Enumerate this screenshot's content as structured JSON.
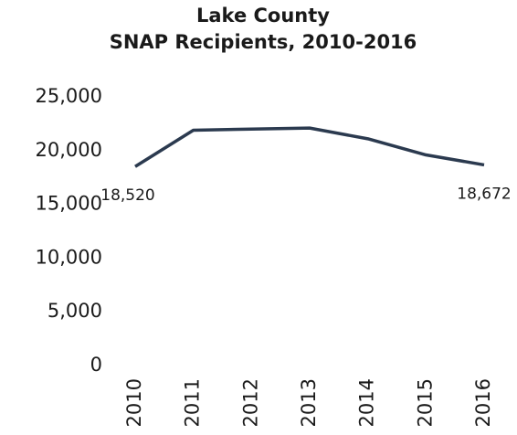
{
  "chart_data": {
    "type": "line",
    "title": "Lake County",
    "subtitle": "SNAP Recipients, 2010-2016",
    "categories": [
      "2010",
      "2011",
      "2012",
      "2013",
      "2014",
      "2015",
      "2016"
    ],
    "series": [
      {
        "name": "SNAP Recipients",
        "color": "#2b3a4f",
        "values": [
          18520,
          21900,
          22000,
          22100,
          21100,
          19600,
          18672
        ],
        "value_labels": [
          "18,520",
          null,
          null,
          null,
          null,
          null,
          "18,672"
        ]
      }
    ],
    "ylim": [
      0,
      25000
    ],
    "yticks": [
      0,
      {
        "value": 5000,
        "label": "5,000"
      },
      {
        "value": 10000,
        "label": "10,000"
      },
      {
        "value": 15000,
        "label": "15,000"
      },
      {
        "value": 20000,
        "label": "20,000"
      },
      {
        "value": 25000,
        "label": "25,000"
      }
    ],
    "grid": false
  }
}
